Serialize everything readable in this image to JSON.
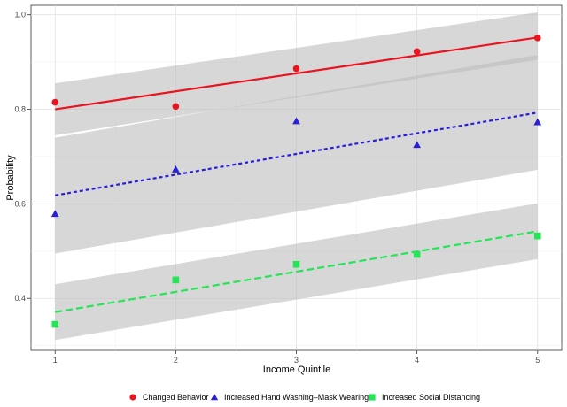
{
  "chart_data": {
    "type": "scatter",
    "title": "",
    "xlabel": "Income Quintile",
    "ylabel": "Probability",
    "xlim": [
      0.8,
      5.2
    ],
    "ylim": [
      0.29,
      1.02
    ],
    "x_ticks": [
      "1",
      "2",
      "3",
      "4",
      "5"
    ],
    "y_ticks": [
      "0.4",
      "0.6",
      "0.8",
      "1.0"
    ],
    "grid": true,
    "legend_position": "bottom",
    "series": [
      {
        "name": "Changed Behavior",
        "color": "#e8141f",
        "marker": "circle",
        "line_style": "solid",
        "x": [
          1,
          2,
          3,
          4,
          5
        ],
        "y": [
          0.815,
          0.806,
          0.886,
          0.922,
          0.951
        ],
        "fit_start": 0.8,
        "fit_end": 0.952,
        "band_low": [
          0.745,
          0.905
        ],
        "band_high": [
          0.855,
          1.005
        ]
      },
      {
        "name": "Increased Hand Washing–Mask Wearing",
        "color": "#2a1fd6",
        "marker": "triangle",
        "line_style": "dotted",
        "x": [
          1,
          2,
          3,
          4,
          5
        ],
        "y": [
          0.579,
          0.673,
          0.775,
          0.725,
          0.773
        ],
        "fit_start": 0.618,
        "fit_end": 0.793,
        "band_low": [
          0.495,
          0.672
        ],
        "band_high": [
          0.74,
          0.915
        ]
      },
      {
        "name": "Increased Social Distancing",
        "color": "#22e655",
        "marker": "square",
        "line_style": "dashed",
        "x": [
          1,
          2,
          3,
          4,
          5
        ],
        "y": [
          0.345,
          0.439,
          0.472,
          0.493,
          0.532
        ],
        "fit_start": 0.371,
        "fit_end": 0.542,
        "band_low": [
          0.312,
          0.483
        ],
        "band_high": [
          0.43,
          0.601
        ]
      }
    ]
  }
}
